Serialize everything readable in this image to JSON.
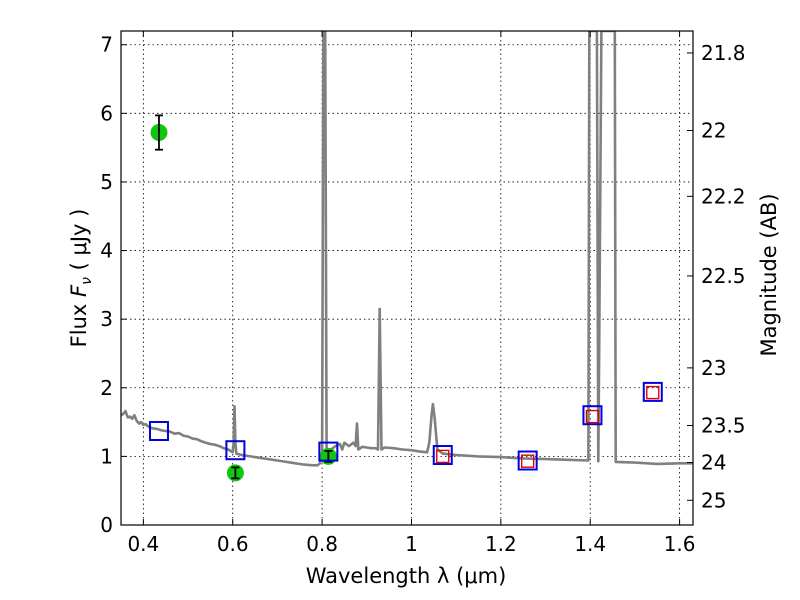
{
  "chart_data": {
    "type": "scatter",
    "xlabel": "Wavelength  λ (μm)",
    "ylabel_left_prefix": "Flux  ",
    "ylabel_left_symbol": "F",
    "ylabel_left_subscript": "ν",
    "ylabel_left_units": "  ( μJy )",
    "ylabel_right": "Magnitude (AB)",
    "xlim": [
      0.35,
      1.63
    ],
    "ylim": [
      0,
      7.2
    ],
    "grid": true,
    "x_ticks": [
      {
        "value": 0.4,
        "label": "0.4"
      },
      {
        "value": 0.6,
        "label": "0.6"
      },
      {
        "value": 0.8,
        "label": "0.8"
      },
      {
        "value": 1.0,
        "label": "1"
      },
      {
        "value": 1.2,
        "label": "1.2"
      },
      {
        "value": 1.4,
        "label": "1.4"
      },
      {
        "value": 1.6,
        "label": "1.6"
      }
    ],
    "y_ticks": [
      {
        "value": 0,
        "label": "0"
      },
      {
        "value": 1,
        "label": "1"
      },
      {
        "value": 2,
        "label": "2"
      },
      {
        "value": 3,
        "label": "3"
      },
      {
        "value": 4,
        "label": "4"
      },
      {
        "value": 5,
        "label": "5"
      },
      {
        "value": 6,
        "label": "6"
      },
      {
        "value": 7,
        "label": "7"
      }
    ],
    "right_ticks": [
      {
        "label": "21.8",
        "flux": 6.88
      },
      {
        "label": "22",
        "flux": 5.75
      },
      {
        "label": "22.2",
        "flux": 4.79
      },
      {
        "label": "22.5",
        "flux": 3.63
      },
      {
        "label": "23",
        "flux": 2.29
      },
      {
        "label": "23.5",
        "flux": 1.45
      },
      {
        "label": "24",
        "flux": 0.91
      },
      {
        "label": "25",
        "flux": 0.36
      }
    ],
    "series": [
      {
        "kind": "spectrum",
        "color": "#808080",
        "points": [
          [
            0.35,
            1.6
          ],
          [
            0.355,
            1.62
          ],
          [
            0.36,
            1.66
          ],
          [
            0.365,
            1.57
          ],
          [
            0.37,
            1.58
          ],
          [
            0.375,
            1.55
          ],
          [
            0.38,
            1.6
          ],
          [
            0.385,
            1.52
          ],
          [
            0.39,
            1.48
          ],
          [
            0.395,
            1.5
          ],
          [
            0.4,
            1.46
          ],
          [
            0.405,
            1.47
          ],
          [
            0.41,
            1.44
          ],
          [
            0.42,
            1.41
          ],
          [
            0.43,
            1.4
          ],
          [
            0.44,
            1.38
          ],
          [
            0.45,
            1.37
          ],
          [
            0.46,
            1.36
          ],
          [
            0.47,
            1.33
          ],
          [
            0.48,
            1.34
          ],
          [
            0.49,
            1.3
          ],
          [
            0.5,
            1.29
          ],
          [
            0.51,
            1.26
          ],
          [
            0.52,
            1.25
          ],
          [
            0.53,
            1.22
          ],
          [
            0.54,
            1.2
          ],
          [
            0.55,
            1.18
          ],
          [
            0.56,
            1.17
          ],
          [
            0.57,
            1.15
          ],
          [
            0.58,
            1.12
          ],
          [
            0.59,
            1.1
          ],
          [
            0.595,
            1.08
          ],
          [
            0.6,
            1.06
          ],
          [
            0.602,
            1.2
          ],
          [
            0.604,
            1.73
          ],
          [
            0.606,
            1.2
          ],
          [
            0.608,
            1.04
          ],
          [
            0.62,
            1.02
          ],
          [
            0.64,
            1.0
          ],
          [
            0.66,
            0.98
          ],
          [
            0.68,
            0.96
          ],
          [
            0.7,
            0.94
          ],
          [
            0.72,
            0.92
          ],
          [
            0.74,
            0.9
          ],
          [
            0.76,
            0.88
          ],
          [
            0.78,
            0.87
          ],
          [
            0.79,
            0.87
          ],
          [
            0.795,
            0.9
          ],
          [
            0.8,
            1.0
          ],
          [
            0.803,
            7.2
          ],
          [
            0.807,
            7.2
          ],
          [
            0.81,
            1.05
          ],
          [
            0.82,
            1.1
          ],
          [
            0.83,
            1.15
          ],
          [
            0.84,
            1.18
          ],
          [
            0.845,
            1.1
          ],
          [
            0.85,
            1.2
          ],
          [
            0.86,
            1.15
          ],
          [
            0.87,
            1.2
          ],
          [
            0.875,
            1.15
          ],
          [
            0.878,
            1.48
          ],
          [
            0.881,
            1.1
          ],
          [
            0.89,
            1.14
          ],
          [
            0.9,
            1.13
          ],
          [
            0.91,
            1.12
          ],
          [
            0.92,
            1.12
          ],
          [
            0.925,
            1.1
          ],
          [
            0.929,
            3.15
          ],
          [
            0.933,
            1.1
          ],
          [
            0.94,
            1.13
          ],
          [
            0.96,
            1.12
          ],
          [
            0.98,
            1.1
          ],
          [
            1.0,
            1.09
          ],
          [
            1.02,
            1.07
          ],
          [
            1.035,
            1.06
          ],
          [
            1.04,
            1.2
          ],
          [
            1.045,
            1.6
          ],
          [
            1.048,
            1.76
          ],
          [
            1.052,
            1.55
          ],
          [
            1.058,
            1.1
          ],
          [
            1.07,
            1.04
          ],
          [
            1.1,
            1.02
          ],
          [
            1.15,
            1.0
          ],
          [
            1.2,
            0.99
          ],
          [
            1.25,
            0.97
          ],
          [
            1.3,
            0.96
          ],
          [
            1.35,
            0.95
          ],
          [
            1.396,
            0.94
          ],
          [
            1.398,
            7.2
          ],
          [
            1.405,
            7.2
          ],
          [
            1.415,
            7.2
          ],
          [
            1.418,
            0.93
          ],
          [
            1.42,
            2.6
          ],
          [
            1.425,
            7.2
          ],
          [
            1.44,
            7.2
          ],
          [
            1.445,
            7.2
          ],
          [
            1.455,
            7.2
          ],
          [
            1.457,
            0.92
          ],
          [
            1.5,
            0.91
          ],
          [
            1.55,
            0.89
          ],
          [
            1.6,
            0.9
          ],
          [
            1.63,
            0.9
          ]
        ]
      },
      {
        "kind": "photometry",
        "color": "#11c511",
        "points": [
          {
            "x": 0.435,
            "y": 5.72,
            "err": 0.25
          },
          {
            "x": 0.606,
            "y": 0.76,
            "err": 0.08
          },
          {
            "x": 0.814,
            "y": 1.0,
            "err": 0.08
          }
        ]
      },
      {
        "kind": "model_boxes",
        "color": "#0000e0",
        "points": [
          [
            0.435,
            1.37
          ],
          [
            0.606,
            1.09
          ],
          [
            0.814,
            1.07
          ],
          [
            1.07,
            1.02
          ],
          [
            1.26,
            0.94
          ],
          [
            1.405,
            1.6
          ],
          [
            1.54,
            1.94
          ]
        ]
      },
      {
        "kind": "model_squares",
        "color": "#e00000",
        "points": [
          [
            1.07,
            1.0
          ],
          [
            1.26,
            0.93
          ],
          [
            1.405,
            1.58
          ],
          [
            1.54,
            1.93
          ]
        ]
      }
    ]
  }
}
